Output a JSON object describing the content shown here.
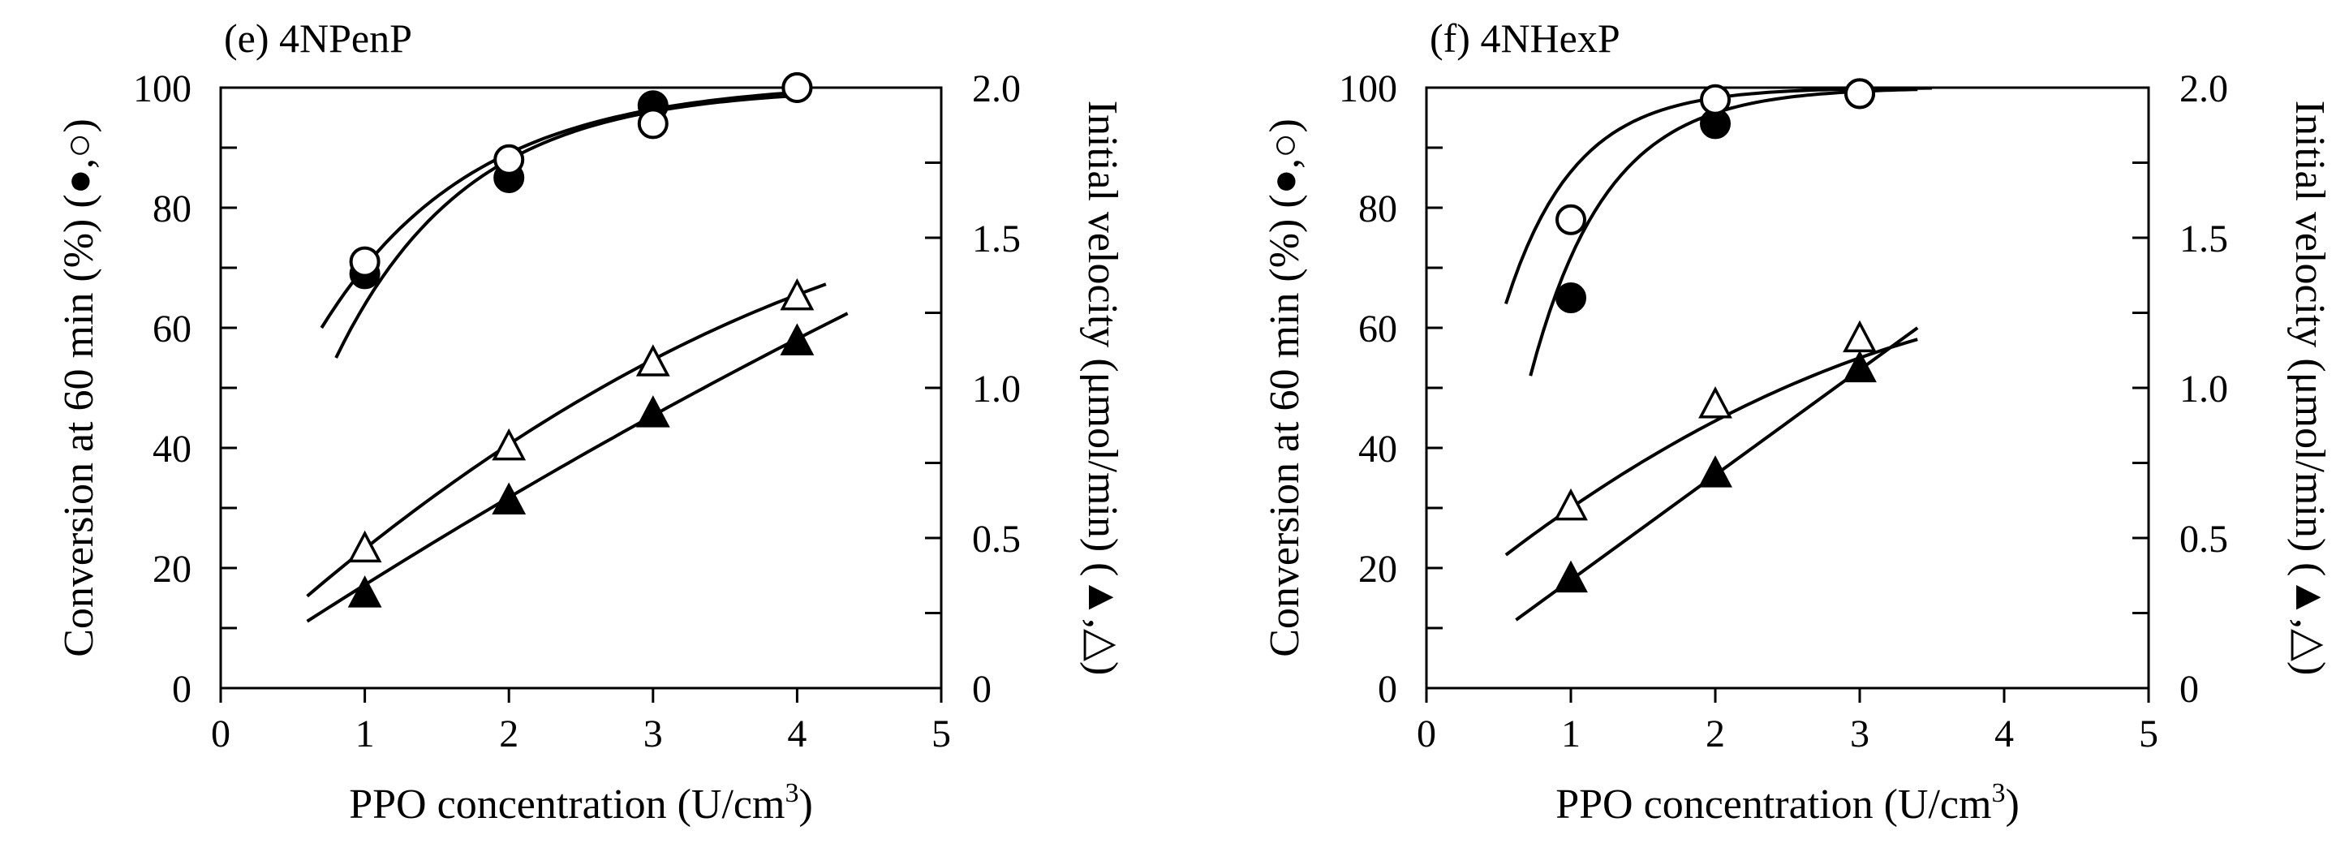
{
  "chart_data": [
    {
      "type": "scatter",
      "panel": "(e) 4NPenP",
      "title": "(e) 4NPenP",
      "xlabel_prefix": "PPO concentration (U/cm",
      "xlabel_sup": "3",
      "xlabel_suffix": ")",
      "ylabel_left": "Conversion at 60 min (%) (●,○)",
      "ylabel_right": "Initial velocity (μmol/min) (▲,△)",
      "xlim": [
        0,
        5
      ],
      "ylim_left": [
        0,
        100
      ],
      "ylim_right": [
        0,
        2.0
      ],
      "xticks": [
        "0",
        "1",
        "2",
        "3",
        "4",
        "5"
      ],
      "yticks_left": [
        "0",
        "20",
        "40",
        "60",
        "80",
        "100"
      ],
      "yticks_right": [
        "0",
        "0.5",
        "1.0",
        "1.5",
        "2.0"
      ],
      "series": [
        {
          "name": "Conversion (filled circle)",
          "marker": "filled-circle",
          "axis": "left",
          "x": [
            1,
            2,
            3,
            4
          ],
          "y": [
            69,
            85,
            97,
            100
          ],
          "fit": {
            "kind": "sat",
            "xmin": 0.8,
            "xmax": 4.0,
            "plateau": 100,
            "amp": 45,
            "k": 1.1,
            "x0": 0.8
          }
        },
        {
          "name": "Conversion (open circle)",
          "marker": "open-circle",
          "axis": "left",
          "x": [
            1,
            2,
            3,
            4
          ],
          "y": [
            71,
            88,
            94,
            100
          ],
          "fit": {
            "kind": "sat",
            "xmin": 0.7,
            "xmax": 4.0,
            "plateau": 101,
            "amp": 41,
            "k": 0.95,
            "x0": 0.7
          }
        },
        {
          "name": "Initial velocity (filled triangle)",
          "marker": "filled-triangle",
          "axis": "right",
          "x": [
            1,
            2,
            3,
            4
          ],
          "y": [
            0.31,
            0.62,
            0.91,
            1.15
          ],
          "fit": {
            "kind": "poly",
            "xmin": 0.6,
            "xmax": 4.35,
            "a": 0.035,
            "b": 0.318,
            "c": -0.009
          }
        },
        {
          "name": "Initial velocity (open triangle)",
          "marker": "open-triangle",
          "axis": "right",
          "x": [
            1,
            2,
            3,
            4
          ],
          "y": [
            0.46,
            0.8,
            1.08,
            1.3
          ],
          "fit": {
            "kind": "poly",
            "xmin": 0.6,
            "xmax": 4.2,
            "a": 0.05,
            "b": 0.447,
            "c": -0.033
          }
        }
      ]
    },
    {
      "type": "scatter",
      "panel": "(f) 4NHexP",
      "title": "(f) 4NHexP",
      "xlabel_prefix": "PPO concentration (U/cm",
      "xlabel_sup": "3",
      "xlabel_suffix": ")",
      "ylabel_left": "Conversion at 60 min (%) (●,○)",
      "ylabel_right": "Initial velocity (μmol/min) (▲,△)",
      "xlim": [
        0,
        5
      ],
      "ylim_left": [
        0,
        100
      ],
      "ylim_right": [
        0,
        2.0
      ],
      "xticks": [
        "0",
        "1",
        "2",
        "3",
        "4",
        "5"
      ],
      "yticks_left": [
        "0",
        "20",
        "40",
        "60",
        "80",
        "100"
      ],
      "yticks_right": [
        "0",
        "0.5",
        "1.0",
        "1.5",
        "2.0"
      ],
      "series": [
        {
          "name": "Conversion (filled circle)",
          "marker": "filled-circle",
          "axis": "left",
          "x": [
            1,
            2,
            3
          ],
          "y": [
            65,
            94,
            99
          ],
          "fit": {
            "kind": "sat",
            "xmin": 0.72,
            "xmax": 3.4,
            "plateau": 100,
            "amp": 48,
            "k": 1.9,
            "x0": 0.72
          }
        },
        {
          "name": "Conversion (open circle)",
          "marker": "open-circle",
          "axis": "left",
          "x": [
            1,
            2,
            3
          ],
          "y": [
            78,
            98,
            99
          ],
          "fit": {
            "kind": "sat",
            "xmin": 0.55,
            "xmax": 3.5,
            "plateau": 100,
            "amp": 36,
            "k": 2.1,
            "x0": 0.55
          }
        },
        {
          "name": "Initial velocity (filled triangle)",
          "marker": "filled-triangle",
          "axis": "right",
          "x": [
            1,
            2,
            3
          ],
          "y": [
            0.36,
            0.71,
            1.06
          ],
          "fit": {
            "kind": "poly",
            "xmin": 0.62,
            "xmax": 3.4,
            "a": 0.01,
            "b": 0.35,
            "c": 0.0
          }
        },
        {
          "name": "Initial velocity (open triangle)",
          "marker": "open-triangle",
          "axis": "right",
          "x": [
            1,
            2,
            3
          ],
          "y": [
            0.6,
            0.94,
            1.16
          ],
          "fit": {
            "kind": "poly",
            "xmin": 0.55,
            "xmax": 3.4,
            "a": 0.23,
            "b": 0.41,
            "c": -0.04
          }
        }
      ]
    }
  ]
}
